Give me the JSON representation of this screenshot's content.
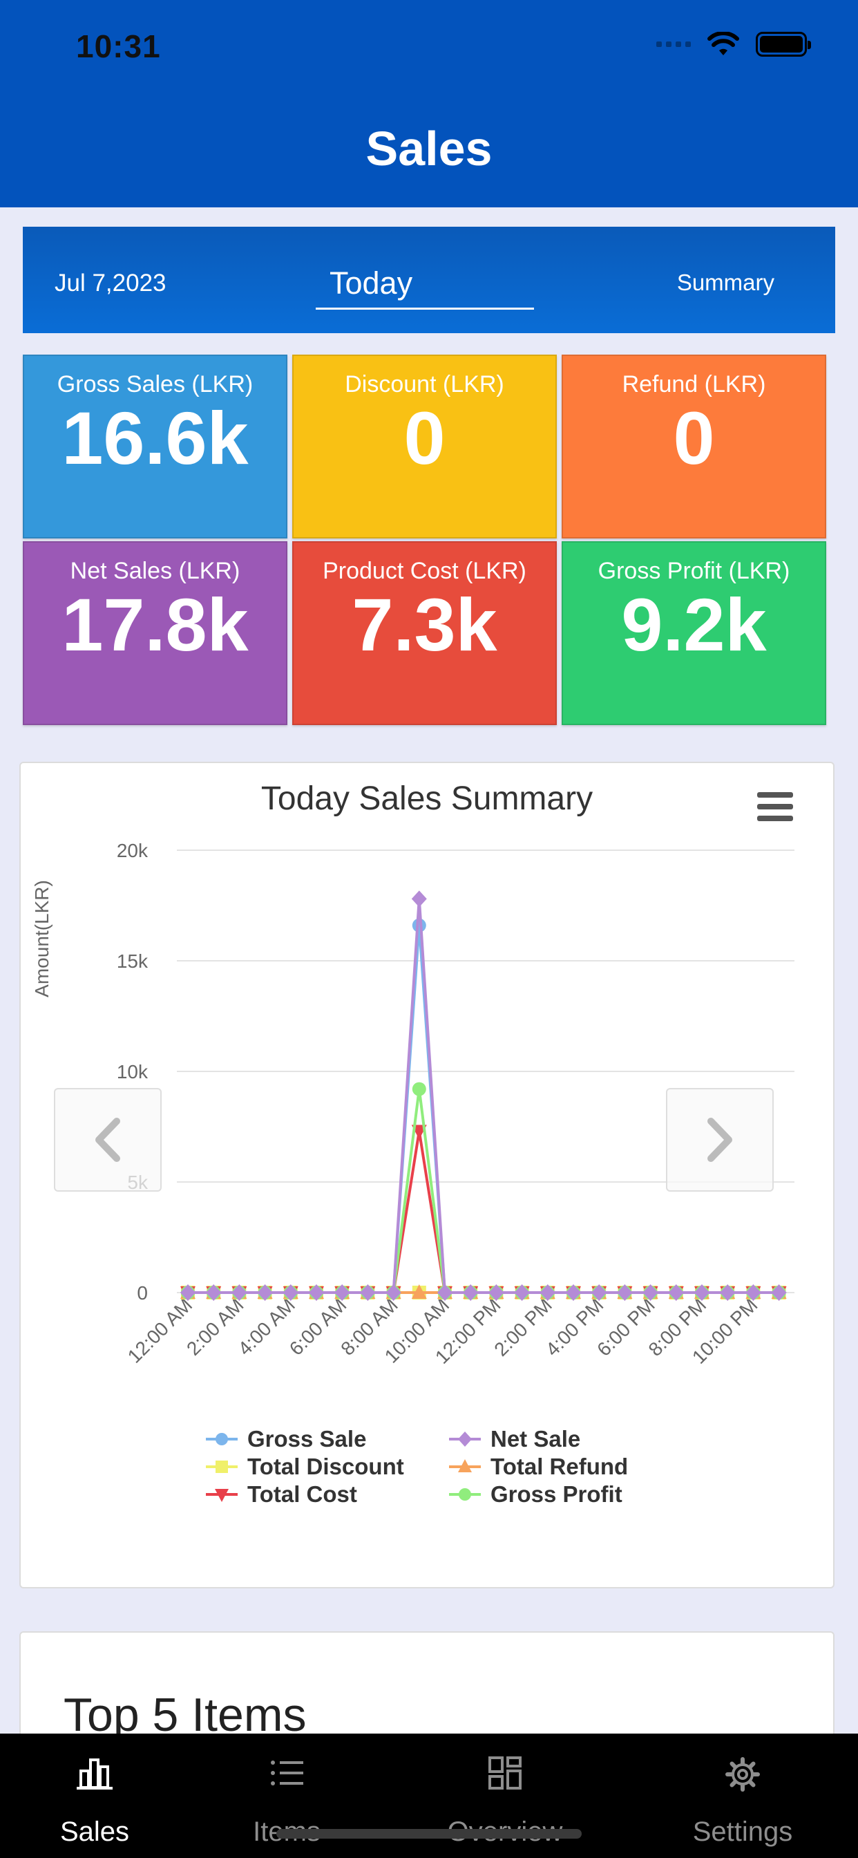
{
  "status_bar": {
    "time": "10:31"
  },
  "header": {
    "title": "Sales"
  },
  "date_bar": {
    "date": "Jul 7,2023",
    "period": "Today",
    "mode": "Summary"
  },
  "tiles": [
    {
      "label": "Gross Sales (LKR)",
      "value": "16.6k",
      "color": "#3498db"
    },
    {
      "label": "Discount (LKR)",
      "value": "0",
      "color": "#f9c114"
    },
    {
      "label": "Refund (LKR)",
      "value": "0",
      "color": "#fd7b3b"
    },
    {
      "label": "Net Sales (LKR)",
      "value": "17.8k",
      "color": "#9b59b6"
    },
    {
      "label": "Product Cost (LKR)",
      "value": "7.3k",
      "color": "#e74c3c"
    },
    {
      "label": "Gross Profit (LKR)",
      "value": "9.2k",
      "color": "#2ecc71"
    }
  ],
  "chart_data": {
    "type": "line",
    "title": "Today Sales Summary",
    "ylabel": "Amount(LKR)",
    "xlabel": "",
    "ylim": [
      0,
      20000
    ],
    "y_ticks": [
      "0",
      "5k",
      "10k",
      "15k",
      "20k"
    ],
    "grid": true,
    "legend_position": "bottom",
    "categories": [
      "12:00 AM",
      "1:00 AM",
      "2:00 AM",
      "3:00 AM",
      "4:00 AM",
      "5:00 AM",
      "6:00 AM",
      "7:00 AM",
      "8:00 AM",
      "9:00 AM",
      "10:00 AM",
      "11:00 AM",
      "12:00 PM",
      "1:00 PM",
      "2:00 PM",
      "3:00 PM",
      "4:00 PM",
      "5:00 PM",
      "6:00 PM",
      "7:00 PM",
      "8:00 PM",
      "9:00 PM",
      "10:00 PM",
      "11:00 PM"
    ],
    "x_tick_labels": [
      "12:00 AM",
      "2:00 AM",
      "4:00 AM",
      "6:00 AM",
      "8:00 AM",
      "10:00 AM",
      "12:00 PM",
      "2:00 PM",
      "4:00 PM",
      "6:00 PM",
      "8:00 PM",
      "10:00 PM"
    ],
    "series": [
      {
        "name": "Gross Sale",
        "color": "#7cb5ec",
        "marker": "circle",
        "values": [
          0,
          0,
          0,
          0,
          0,
          0,
          0,
          0,
          0,
          16600,
          0,
          0,
          0,
          0,
          0,
          0,
          0,
          0,
          0,
          0,
          0,
          0,
          0,
          0
        ]
      },
      {
        "name": "Net Sale",
        "color": "#b48bd6",
        "marker": "diamond",
        "values": [
          0,
          0,
          0,
          0,
          0,
          0,
          0,
          0,
          0,
          17800,
          0,
          0,
          0,
          0,
          0,
          0,
          0,
          0,
          0,
          0,
          0,
          0,
          0,
          0
        ]
      },
      {
        "name": "Total Discount",
        "color": "#f0f06a",
        "marker": "square",
        "values": [
          0,
          0,
          0,
          0,
          0,
          0,
          0,
          0,
          0,
          0,
          0,
          0,
          0,
          0,
          0,
          0,
          0,
          0,
          0,
          0,
          0,
          0,
          0,
          0
        ]
      },
      {
        "name": "Total Refund",
        "color": "#f7a35c",
        "marker": "triangle",
        "values": [
          0,
          0,
          0,
          0,
          0,
          0,
          0,
          0,
          0,
          0,
          0,
          0,
          0,
          0,
          0,
          0,
          0,
          0,
          0,
          0,
          0,
          0,
          0,
          0
        ]
      },
      {
        "name": "Total Cost",
        "color": "#e8404a",
        "marker": "triangle-down",
        "values": [
          0,
          0,
          0,
          0,
          0,
          0,
          0,
          0,
          0,
          7300,
          0,
          0,
          0,
          0,
          0,
          0,
          0,
          0,
          0,
          0,
          0,
          0,
          0,
          0
        ]
      },
      {
        "name": "Gross Profit",
        "color": "#90ed7d",
        "marker": "circle",
        "values": [
          0,
          0,
          0,
          0,
          0,
          0,
          0,
          0,
          0,
          9200,
          0,
          0,
          0,
          0,
          0,
          0,
          0,
          0,
          0,
          0,
          0,
          0,
          0,
          0
        ]
      }
    ]
  },
  "top_items": {
    "title": "Top 5 Items"
  },
  "tabbar": {
    "items": [
      {
        "label": "Sales",
        "icon": "bar-chart-icon",
        "active": true
      },
      {
        "label": "Items",
        "icon": "list-icon",
        "active": false
      },
      {
        "label": "Overview",
        "icon": "grid-icon",
        "active": false
      },
      {
        "label": "Settings",
        "icon": "gear-icon",
        "active": false
      }
    ]
  }
}
